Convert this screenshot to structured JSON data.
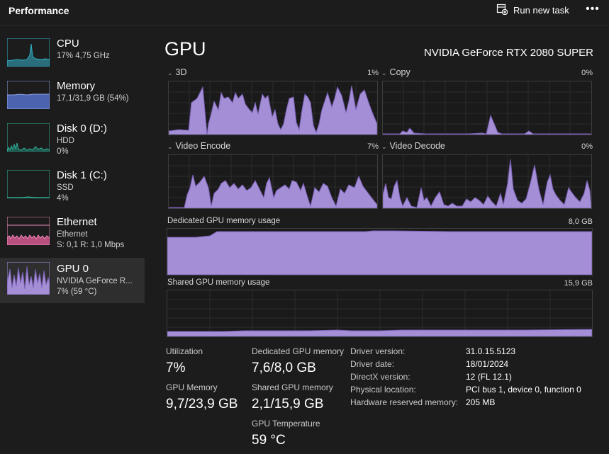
{
  "header": {
    "title": "Performance",
    "run_new_task": "Run new task",
    "more": "•••"
  },
  "sidebar": {
    "cpu": {
      "name": "CPU",
      "line1": "17%  4,75 GHz"
    },
    "memory": {
      "name": "Memory",
      "line1": "17,1/31,9 GB (54%)"
    },
    "disk0": {
      "name": "Disk 0 (D:)",
      "line1": "HDD",
      "line2": "0%"
    },
    "disk1": {
      "name": "Disk 1 (C:)",
      "line1": "SSD",
      "line2": "4%"
    },
    "ethernet": {
      "name": "Ethernet",
      "line1": "Ethernet",
      "line2": "S: 0,1  R: 1,0 Mbps"
    },
    "gpu0": {
      "name": "GPU 0",
      "line1": "NVIDIA GeForce R...",
      "line2": "7%  (59 °C)"
    }
  },
  "main": {
    "title": "GPU",
    "gpu_name": "NVIDIA GeForce RTX 2080 SUPER",
    "engines": {
      "e3d": {
        "label": "3D",
        "pct": "1%"
      },
      "copy": {
        "label": "Copy",
        "pct": "0%"
      },
      "encode": {
        "label": "Video Encode",
        "pct": "7%"
      },
      "decode": {
        "label": "Video Decode",
        "pct": "0%"
      }
    },
    "dedicated": {
      "label": "Dedicated GPU memory usage",
      "max": "8,0 GB"
    },
    "shared": {
      "label": "Shared GPU memory usage",
      "max": "15,9 GB"
    }
  },
  "stats": {
    "utilization": {
      "label": "Utilization",
      "value": "7%"
    },
    "dedicated_mem": {
      "label": "Dedicated GPU memory",
      "value": "7,6/8,0 GB"
    },
    "gpu_memory": {
      "label": "GPU Memory",
      "value": "9,7/23,9 GB"
    },
    "shared_mem": {
      "label": "Shared GPU memory",
      "value": "2,1/15,9 GB"
    },
    "temperature": {
      "label": "GPU Temperature",
      "value": "59 °C"
    }
  },
  "details": {
    "driver_version": {
      "key": "Driver version:",
      "value": "31.0.15.5123"
    },
    "driver_date": {
      "key": "Driver date:",
      "value": "18/01/2024"
    },
    "directx": {
      "key": "DirectX version:",
      "value": "12 (FL 12.1)"
    },
    "location": {
      "key": "Physical location:",
      "value": "PCI bus 1, device 0, function 0"
    },
    "reserved": {
      "key": "Hardware reserved memory:",
      "value": "205 MB"
    }
  },
  "colors": {
    "gpu_fill": "#a48fd6",
    "gpu_stroke": "#7a5fb8",
    "cpu_fill": "#2a6e7c",
    "cpu_stroke": "#2fb3c9",
    "mem_fill": "#4c63b0",
    "mem_stroke": "#8fa3e6",
    "disk_fill": "#1c5a50",
    "disk_stroke": "#33b39a",
    "eth_fill": "#b8507f",
    "eth_stroke": "#f08cbb"
  }
}
